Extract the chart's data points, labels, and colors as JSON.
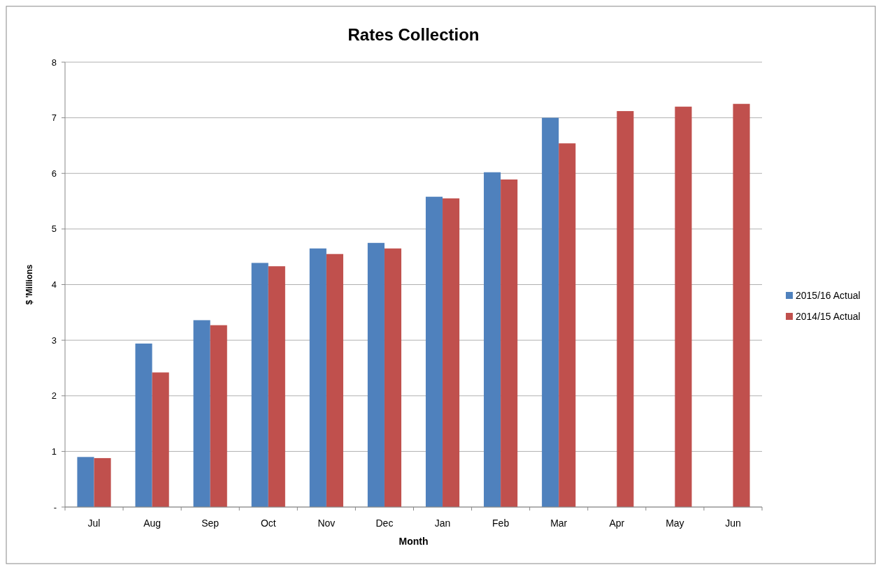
{
  "chart_data": {
    "type": "bar",
    "title": "Rates Collection",
    "xlabel": "Month",
    "ylabel": "$ 'Millions",
    "categories": [
      "Jul",
      "Aug",
      "Sep",
      "Oct",
      "Nov",
      "Dec",
      "Jan",
      "Feb",
      "Mar",
      "Apr",
      "May",
      "Jun"
    ],
    "series": [
      {
        "name": "2015/16 Actual",
        "color": "#4f81bd",
        "values": [
          0.9,
          2.94,
          3.36,
          4.39,
          4.65,
          4.75,
          5.58,
          6.02,
          7.0,
          null,
          null,
          null
        ]
      },
      {
        "name": "2014/15 Actual",
        "color": "#c0504d",
        "values": [
          0.88,
          2.42,
          3.27,
          4.33,
          4.55,
          4.65,
          5.55,
          5.89,
          6.54,
          7.12,
          7.2,
          7.25
        ]
      }
    ],
    "ylim": [
      0,
      8
    ],
    "yticks": [
      {
        "value": 0,
        "label": "-"
      },
      1,
      2,
      3,
      4,
      5,
      6,
      7,
      8
    ],
    "grid": "y",
    "legend": "right"
  }
}
